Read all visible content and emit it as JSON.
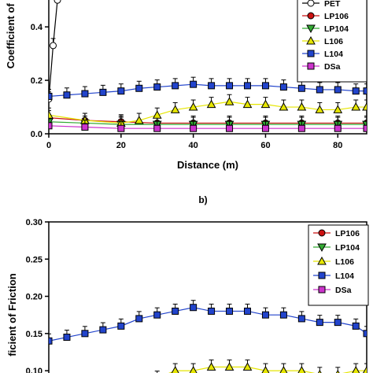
{
  "chart_data": [
    {
      "type": "line",
      "xlabel": "Distance (m)",
      "ylabel": "Coefficient of F",
      "x_ticks": [
        "0",
        "20",
        "40",
        "60",
        "80"
      ],
      "y_ticks": [
        "0.0",
        "0.2",
        "0.4"
      ],
      "xlim": [
        0,
        88
      ],
      "ylim": [
        0,
        0.53
      ],
      "legend": [
        "PET",
        "LP106",
        "LP104",
        "L106",
        "L104",
        "DSa"
      ],
      "legend_placement": "top-right",
      "series": [
        {
          "name": "PET",
          "marker": "open-circle",
          "color": "#000000",
          "x": [
            0,
            1.2,
            2.4
          ],
          "y": [
            0.13,
            0.33,
            0.5
          ]
        },
        {
          "name": "LP106",
          "marker": "circle",
          "color": "#cc1111",
          "x": [
            0,
            10,
            20,
            30,
            40,
            50,
            60,
            70,
            80,
            88
          ],
          "y": [
            0.06,
            0.05,
            0.045,
            0.04,
            0.04,
            0.04,
            0.04,
            0.04,
            0.04,
            0.04
          ]
        },
        {
          "name": "LP104",
          "marker": "triangle-down",
          "color": "#33aa33",
          "x": [
            0,
            10,
            20,
            30,
            40,
            50,
            60,
            70,
            80,
            88
          ],
          "y": [
            0.045,
            0.04,
            0.035,
            0.035,
            0.035,
            0.035,
            0.035,
            0.035,
            0.035,
            0.035
          ]
        },
        {
          "name": "L106",
          "marker": "triangle-up",
          "color": "#e6e600",
          "x": [
            0,
            10,
            20,
            25,
            30,
            35,
            40,
            45,
            50,
            55,
            60,
            65,
            70,
            75,
            80,
            85,
            88
          ],
          "y": [
            0.07,
            0.05,
            0.04,
            0.05,
            0.07,
            0.09,
            0.1,
            0.11,
            0.12,
            0.11,
            0.11,
            0.1,
            0.1,
            0.09,
            0.09,
            0.1,
            0.1
          ]
        },
        {
          "name": "L104",
          "marker": "square",
          "color": "#2244cc",
          "x": [
            0,
            5,
            10,
            15,
            20,
            25,
            30,
            35,
            40,
            45,
            50,
            55,
            60,
            65,
            70,
            75,
            80,
            85,
            88
          ],
          "y": [
            0.14,
            0.145,
            0.15,
            0.155,
            0.16,
            0.17,
            0.175,
            0.18,
            0.185,
            0.18,
            0.18,
            0.18,
            0.18,
            0.175,
            0.17,
            0.165,
            0.165,
            0.16,
            0.16
          ]
        },
        {
          "name": "DSa",
          "marker": "square",
          "color": "#cc33cc",
          "x": [
            0,
            10,
            20,
            30,
            40,
            50,
            60,
            70,
            80,
            88
          ],
          "y": [
            0.03,
            0.025,
            0.02,
            0.02,
            0.02,
            0.02,
            0.02,
            0.02,
            0.02,
            0.02
          ]
        }
      ]
    },
    {
      "type": "line",
      "panel_label": "b)",
      "ylabel": "ficient of Friction",
      "y_ticks": [
        "0.10",
        "0.15",
        "0.20",
        "0.25",
        "0.30"
      ],
      "xlim": [
        0,
        88
      ],
      "ylim": [
        0.08,
        0.3
      ],
      "legend": [
        "LP106",
        "LP104",
        "L106",
        "L104",
        "DSa"
      ],
      "legend_placement": "top-right",
      "series": [
        {
          "name": "L104",
          "marker": "square",
          "color": "#2244cc",
          "x": [
            0,
            5,
            10,
            15,
            20,
            25,
            30,
            35,
            40,
            45,
            50,
            55,
            60,
            65,
            70,
            75,
            80,
            85,
            88
          ],
          "y": [
            0.14,
            0.145,
            0.15,
            0.155,
            0.16,
            0.17,
            0.175,
            0.18,
            0.185,
            0.18,
            0.18,
            0.18,
            0.175,
            0.175,
            0.17,
            0.165,
            0.165,
            0.16,
            0.15
          ]
        },
        {
          "name": "L106",
          "marker": "triangle-up",
          "color": "#e6e600",
          "x": [
            30,
            35,
            40,
            45,
            50,
            55,
            60,
            65,
            70,
            75,
            80,
            85,
            88
          ],
          "y": [
            0.09,
            0.1,
            0.1,
            0.105,
            0.105,
            0.105,
            0.1,
            0.1,
            0.1,
            0.095,
            0.095,
            0.1,
            0.1
          ]
        }
      ]
    }
  ]
}
